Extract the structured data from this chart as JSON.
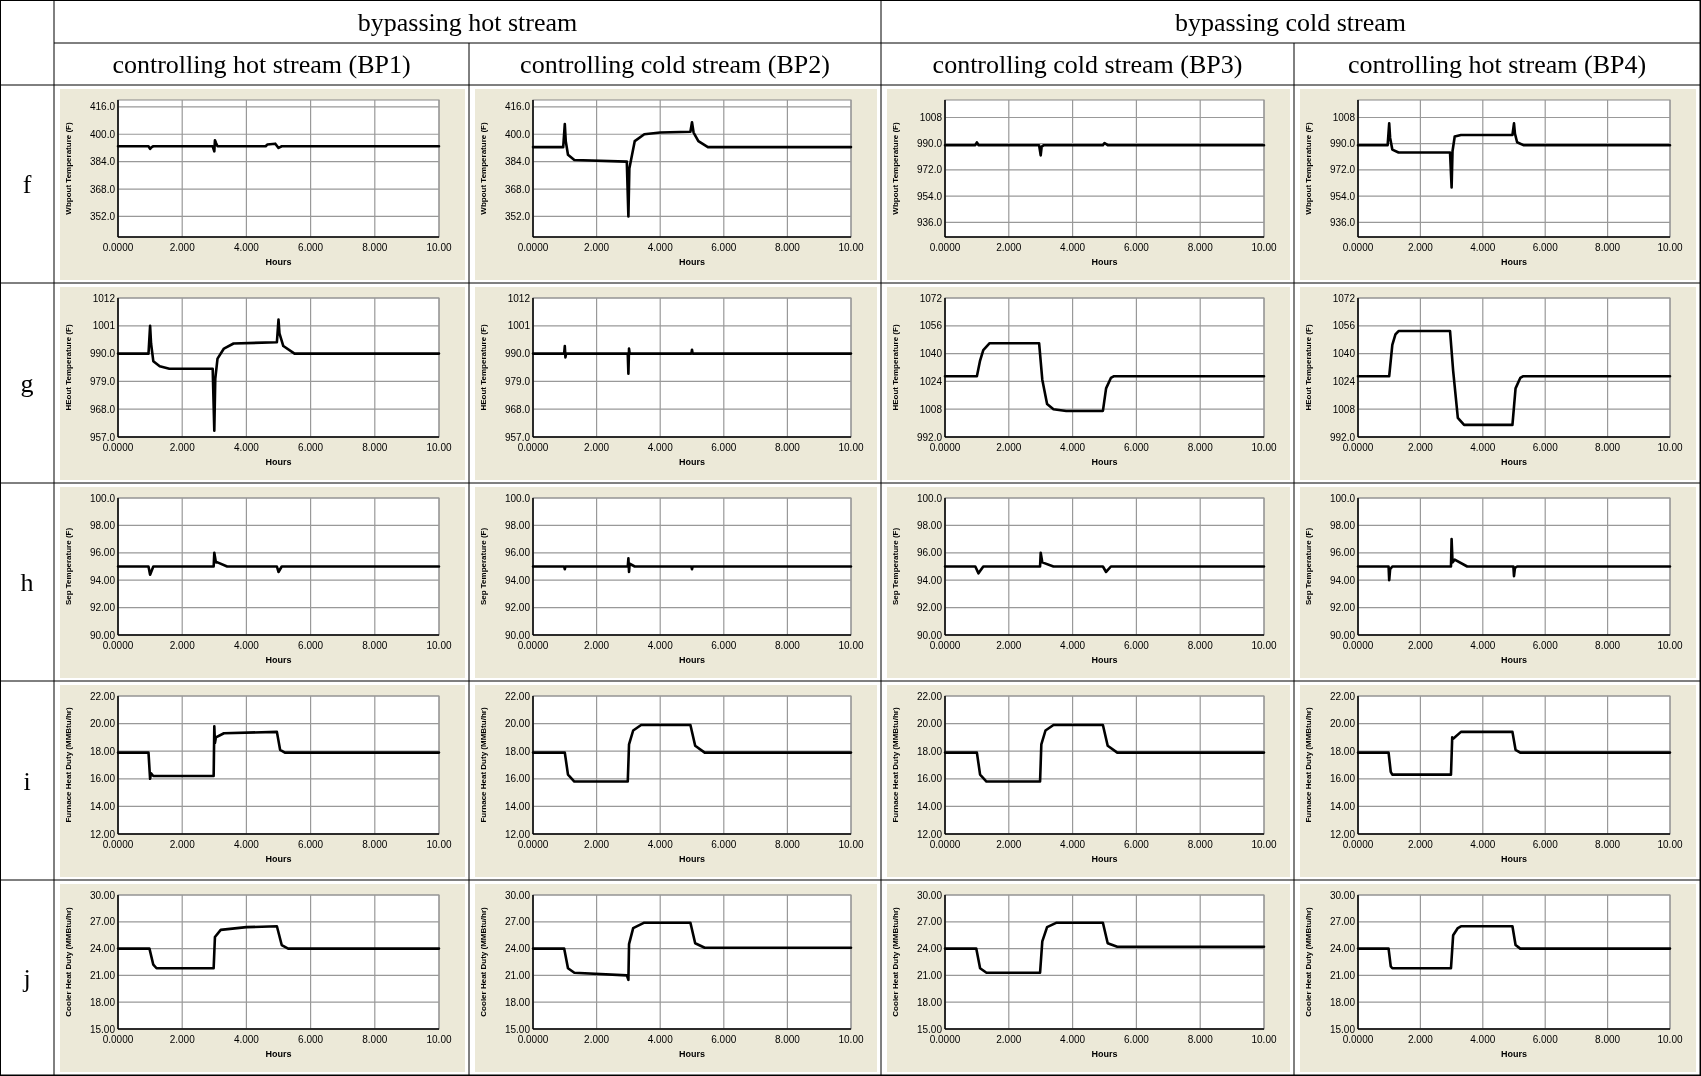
{
  "chart_data": [
    {
      "type": "other",
      "annotations": [
        "bypassing hot stream",
        "bypassing cold stream",
        "controlling hot stream (BP1)",
        "controlling cold stream (BP2)",
        "controlling cold stream (BP3)",
        "controlling hot stream (BP4)",
        "f",
        "g",
        "h",
        "i",
        "j"
      ]
    },
    {
      "type": "line",
      "xlabel": "Hours",
      "ylabel": "Wbpout Temperature (F)",
      "grid": true,
      "xlim": [
        0,
        10
      ],
      "xticks": [
        {
          "value": 0,
          "label": "0.0000"
        },
        {
          "value": 2,
          "label": "2.000"
        },
        {
          "value": 4,
          "label": "4.000"
        },
        {
          "value": 6,
          "label": "6.000"
        },
        {
          "value": 8,
          "label": "8.000"
        },
        {
          "value": 10,
          "label": "10.00"
        }
      ],
      "ylim": [
        340,
        420
      ],
      "yticks": [
        {
          "value": 352,
          "label": "352.0"
        },
        {
          "value": 368,
          "label": "368.0"
        },
        {
          "value": 384,
          "label": "384.0"
        },
        {
          "value": 400,
          "label": "400.0"
        },
        {
          "value": 416,
          "label": "416.0"
        }
      ],
      "x": [
        0,
        0.95,
        1.0,
        1.05,
        1.1,
        2.95,
        3.0,
        3.02,
        3.05,
        3.1,
        4.6,
        4.65,
        4.9,
        5.0,
        5.05,
        5.1,
        10
      ],
      "series": [
        {
          "color": "#000000",
          "values": [
            393,
            393,
            391.5,
            392.5,
            393,
            393,
            390,
            396.5,
            395,
            393,
            393,
            394,
            394.5,
            392,
            392.5,
            393,
            393
          ]
        }
      ]
    },
    {
      "type": "line",
      "xlabel": "Hours",
      "ylabel": "Wbpout Temperature (F)",
      "grid": true,
      "xlim": [
        0,
        10
      ],
      "xticks": [
        {
          "value": 0,
          "label": "0.0000"
        },
        {
          "value": 2,
          "label": "2.000"
        },
        {
          "value": 4,
          "label": "4.000"
        },
        {
          "value": 6,
          "label": "6.000"
        },
        {
          "value": 8,
          "label": "8.000"
        },
        {
          "value": 10,
          "label": "10.00"
        }
      ],
      "ylim": [
        340,
        420
      ],
      "yticks": [
        {
          "value": 352,
          "label": "352.0"
        },
        {
          "value": 368,
          "label": "368.0"
        },
        {
          "value": 384,
          "label": "384.0"
        },
        {
          "value": 400,
          "label": "400.0"
        },
        {
          "value": 416,
          "label": "416.0"
        }
      ],
      "x": [
        0,
        0.95,
        1.0,
        1.03,
        1.1,
        1.3,
        2.95,
        3.0,
        3.03,
        3.2,
        3.5,
        4.0,
        4.95,
        5.0,
        5.05,
        5.2,
        5.5,
        10
      ],
      "series": [
        {
          "color": "#000000",
          "values": [
            392.5,
            392.5,
            406,
            396,
            388,
            385,
            384,
            352,
            380,
            396,
            400,
            401,
            401.5,
            407,
            401,
            396,
            392.5,
            392.5
          ]
        }
      ]
    },
    {
      "type": "line",
      "xlabel": "Hours",
      "ylabel": "Wbpout Temperature (F)",
      "grid": true,
      "xlim": [
        0,
        10
      ],
      "xticks": [
        {
          "value": 0,
          "label": "0.0000"
        },
        {
          "value": 2,
          "label": "2.000"
        },
        {
          "value": 4,
          "label": "4.000"
        },
        {
          "value": 6,
          "label": "6.000"
        },
        {
          "value": 8,
          "label": "8.000"
        },
        {
          "value": 10,
          "label": "10.00"
        }
      ],
      "ylim": [
        926,
        1020
      ],
      "yticks": [
        {
          "value": 936,
          "label": "936.0"
        },
        {
          "value": 954,
          "label": "954.0"
        },
        {
          "value": 972,
          "label": "972.0"
        },
        {
          "value": 990,
          "label": "990.0"
        },
        1008
      ],
      "x": [
        0,
        0.95,
        1.0,
        1.05,
        2.95,
        3.0,
        3.03,
        3.1,
        4.95,
        5.0,
        5.1,
        10
      ],
      "series": [
        {
          "color": "#000000",
          "values": [
            989,
            989,
            991,
            989,
            989,
            982,
            988,
            989,
            989,
            990.5,
            989,
            989
          ]
        }
      ]
    },
    {
      "type": "line",
      "xlabel": "Hours",
      "ylabel": "Wbpout Temperature (F)",
      "grid": true,
      "xlim": [
        0,
        10
      ],
      "xticks": [
        {
          "value": 0,
          "label": "0.0000"
        },
        {
          "value": 2,
          "label": "2.000"
        },
        {
          "value": 4,
          "label": "4.000"
        },
        {
          "value": 6,
          "label": "6.000"
        },
        {
          "value": 8,
          "label": "8.000"
        },
        {
          "value": 10,
          "label": "10.00"
        }
      ],
      "ylim": [
        926,
        1020
      ],
      "yticks": [
        {
          "value": 936,
          "label": "936.0"
        },
        {
          "value": 954,
          "label": "954.0"
        },
        {
          "value": 972,
          "label": "972.0"
        },
        {
          "value": 990,
          "label": "990.0"
        },
        1008
      ],
      "x": [
        0,
        0.95,
        1.0,
        1.03,
        1.1,
        1.3,
        2.95,
        3.0,
        3.03,
        3.1,
        3.3,
        4.95,
        5.0,
        5.03,
        5.1,
        5.3,
        10
      ],
      "series": [
        {
          "color": "#000000",
          "values": [
            989,
            989,
            1004,
            994,
            986,
            984,
            984,
            960,
            985,
            995,
            996,
            996,
            1004,
            997,
            991,
            989,
            989
          ]
        }
      ]
    },
    {
      "type": "line",
      "xlabel": "Hours",
      "ylabel": "HEout Temperature (F)",
      "grid": true,
      "xlim": [
        0,
        10
      ],
      "xticks": [
        {
          "value": 0,
          "label": "0.0000"
        },
        {
          "value": 2,
          "label": "2.000"
        },
        {
          "value": 4,
          "label": "4.000"
        },
        {
          "value": 6,
          "label": "6.000"
        },
        {
          "value": 8,
          "label": "8.000"
        },
        {
          "value": 10,
          "label": "10.00"
        }
      ],
      "ylim": [
        957,
        1012
      ],
      "yticks": [
        {
          "value": 957,
          "label": "957.0"
        },
        {
          "value": 968,
          "label": "968.0"
        },
        {
          "value": 979,
          "label": "979.0"
        },
        {
          "value": 990,
          "label": "990.0"
        },
        1001,
        1012
      ],
      "x": [
        0,
        0.95,
        1.0,
        1.03,
        1.1,
        1.3,
        1.6,
        2.95,
        3.0,
        3.03,
        3.1,
        3.3,
        3.6,
        4.95,
        5.0,
        5.03,
        5.15,
        5.5,
        10
      ],
      "series": [
        {
          "color": "#000000",
          "values": [
            990,
            990,
            1001,
            994,
            987,
            985,
            984,
            984,
            959.5,
            980,
            988,
            992,
            994,
            994.5,
            1003.5,
            998,
            993,
            990,
            990
          ]
        }
      ]
    },
    {
      "type": "line",
      "xlabel": "Hours",
      "ylabel": "HEout Temperature (F)",
      "grid": true,
      "xlim": [
        0,
        10
      ],
      "xticks": [
        {
          "value": 0,
          "label": "0.0000"
        },
        {
          "value": 2,
          "label": "2.000"
        },
        {
          "value": 4,
          "label": "4.000"
        },
        {
          "value": 6,
          "label": "6.000"
        },
        {
          "value": 8,
          "label": "8.000"
        },
        {
          "value": 10,
          "label": "10.00"
        }
      ],
      "ylim": [
        957,
        1012
      ],
      "yticks": [
        {
          "value": 957,
          "label": "957.0"
        },
        {
          "value": 968,
          "label": "968.0"
        },
        {
          "value": 979,
          "label": "979.0"
        },
        {
          "value": 990,
          "label": "990.0"
        },
        1001,
        1012
      ],
      "x": [
        0,
        0.98,
        1.0,
        1.02,
        1.04,
        2.98,
        3.0,
        3.02,
        3.04,
        4.98,
        5.0,
        5.02,
        10
      ],
      "series": [
        {
          "color": "#000000",
          "values": [
            990,
            990,
            993,
            988.5,
            990,
            990,
            982,
            992,
            990,
            990,
            991.5,
            990,
            990
          ]
        }
      ]
    },
    {
      "type": "line",
      "xlabel": "Hours",
      "ylabel": "HEout Temperature (F)",
      "grid": true,
      "xlim": [
        0,
        10
      ],
      "xticks": [
        {
          "value": 0,
          "label": "0.0000"
        },
        {
          "value": 2,
          "label": "2.000"
        },
        {
          "value": 4,
          "label": "4.000"
        },
        {
          "value": 6,
          "label": "6.000"
        },
        {
          "value": 8,
          "label": "8.000"
        },
        {
          "value": 10,
          "label": "10.00"
        }
      ],
      "ylim": [
        992,
        1072
      ],
      "yticks": [
        {
          "value": 992,
          "label": "992.0"
        },
        1008,
        1024,
        1040,
        1056,
        1072
      ],
      "x": [
        0,
        1.0,
        1.1,
        1.2,
        1.4,
        2.95,
        3.05,
        3.2,
        3.4,
        3.8,
        4.95,
        5.05,
        5.2,
        5.3,
        10
      ],
      "series": [
        {
          "color": "#000000",
          "values": [
            1027,
            1027,
            1036,
            1042,
            1046,
            1046,
            1025,
            1011,
            1008,
            1007,
            1007,
            1020,
            1026,
            1027,
            1027
          ]
        }
      ]
    },
    {
      "type": "line",
      "xlabel": "Hours",
      "ylabel": "HEout Temperature (F)",
      "grid": true,
      "xlim": [
        0,
        10
      ],
      "xticks": [
        {
          "value": 0,
          "label": "0.0000"
        },
        {
          "value": 2,
          "label": "2.000"
        },
        {
          "value": 4,
          "label": "4.000"
        },
        {
          "value": 6,
          "label": "6.000"
        },
        {
          "value": 8,
          "label": "8.000"
        },
        {
          "value": 10,
          "label": "10.00"
        }
      ],
      "ylim": [
        992,
        1072
      ],
      "yticks": [
        {
          "value": 992,
          "label": "992.0"
        },
        1008,
        1024,
        1040,
        1056,
        1072
      ],
      "x": [
        0,
        1.0,
        1.1,
        1.2,
        1.3,
        2.95,
        3.05,
        3.2,
        3.4,
        4.95,
        5.05,
        5.2,
        5.3,
        10
      ],
      "series": [
        {
          "color": "#000000",
          "values": [
            1027,
            1027,
            1045,
            1051,
            1053,
            1053,
            1030,
            1003,
            999,
            999,
            1020,
            1026,
            1027,
            1027
          ]
        }
      ]
    },
    {
      "type": "line",
      "xlabel": "Hours",
      "ylabel": "Sep Temperature (F)",
      "grid": true,
      "xlim": [
        0,
        10
      ],
      "xticks": [
        {
          "value": 0,
          "label": "0.0000"
        },
        {
          "value": 2,
          "label": "2.000"
        },
        {
          "value": 4,
          "label": "4.000"
        },
        {
          "value": 6,
          "label": "6.000"
        },
        {
          "value": 8,
          "label": "8.000"
        },
        {
          "value": 10,
          "label": "10.00"
        }
      ],
      "ylim": [
        90,
        100
      ],
      "yticks": [
        {
          "value": 90,
          "label": "90.00"
        },
        {
          "value": 92,
          "label": "92.00"
        },
        {
          "value": 94,
          "label": "94.00"
        },
        {
          "value": 96,
          "label": "96.00"
        },
        {
          "value": 98,
          "label": "98.00"
        },
        {
          "value": 100,
          "label": "100.0"
        }
      ],
      "x": [
        0,
        0.95,
        1.0,
        1.1,
        2.98,
        3.0,
        3.05,
        3.1,
        3.4,
        4.95,
        5.0,
        5.1,
        10
      ],
      "series": [
        {
          "color": "#000000",
          "values": [
            95,
            95,
            94.4,
            95,
            95,
            96,
            95.3,
            95.3,
            95,
            95,
            94.6,
            95,
            95
          ]
        }
      ]
    },
    {
      "type": "line",
      "xlabel": "Hours",
      "ylabel": "Sep Temperature (F)",
      "grid": true,
      "xlim": [
        0,
        10
      ],
      "xticks": [
        {
          "value": 0,
          "label": "0.0000"
        },
        {
          "value": 2,
          "label": "2.000"
        },
        {
          "value": 4,
          "label": "4.000"
        },
        {
          "value": 6,
          "label": "6.000"
        },
        {
          "value": 8,
          "label": "8.000"
        },
        {
          "value": 10,
          "label": "10.00"
        }
      ],
      "ylim": [
        90,
        100
      ],
      "yticks": [
        {
          "value": 90,
          "label": "90.00"
        },
        {
          "value": 92,
          "label": "92.00"
        },
        {
          "value": 94,
          "label": "94.00"
        },
        {
          "value": 96,
          "label": "96.00"
        },
        {
          "value": 98,
          "label": "98.00"
        },
        {
          "value": 100,
          "label": "100.0"
        }
      ],
      "x": [
        0,
        0.98,
        1.0,
        1.02,
        2.98,
        3.0,
        3.02,
        3.04,
        3.2,
        4.98,
        5.0,
        5.02,
        10
      ],
      "series": [
        {
          "color": "#000000",
          "values": [
            95,
            95,
            94.8,
            95,
            95,
            95.6,
            94.6,
            95.2,
            95,
            95,
            94.8,
            95,
            95
          ]
        }
      ]
    },
    {
      "type": "line",
      "xlabel": "Hours",
      "ylabel": "Sep Temperature (F)",
      "grid": true,
      "xlim": [
        0,
        10
      ],
      "xticks": [
        {
          "value": 0,
          "label": "0.0000"
        },
        {
          "value": 2,
          "label": "2.000"
        },
        {
          "value": 4,
          "label": "4.000"
        },
        {
          "value": 6,
          "label": "6.000"
        },
        {
          "value": 8,
          "label": "8.000"
        },
        {
          "value": 10,
          "label": "10.00"
        }
      ],
      "ylim": [
        90,
        100
      ],
      "yticks": [
        {
          "value": 90,
          "label": "90.00"
        },
        {
          "value": 92,
          "label": "92.00"
        },
        {
          "value": 94,
          "label": "94.00"
        },
        {
          "value": 96,
          "label": "96.00"
        },
        {
          "value": 98,
          "label": "98.00"
        },
        {
          "value": 100,
          "label": "100.0"
        }
      ],
      "x": [
        0,
        0.95,
        1.05,
        1.2,
        2.98,
        3.0,
        3.05,
        3.4,
        4.95,
        5.05,
        5.2,
        10
      ],
      "series": [
        {
          "color": "#000000",
          "values": [
            95,
            95,
            94.5,
            95,
            95,
            96,
            95.3,
            95,
            95,
            94.6,
            95,
            95
          ]
        }
      ]
    },
    {
      "type": "line",
      "xlabel": "Hours",
      "ylabel": "Sep Temperature (F)",
      "grid": true,
      "xlim": [
        0,
        10
      ],
      "xticks": [
        {
          "value": 0,
          "label": "0.0000"
        },
        {
          "value": 2,
          "label": "2.000"
        },
        {
          "value": 4,
          "label": "4.000"
        },
        {
          "value": 6,
          "label": "6.000"
        },
        {
          "value": 8,
          "label": "8.000"
        },
        {
          "value": 10,
          "label": "10.00"
        }
      ],
      "ylim": [
        90,
        100
      ],
      "yticks": [
        {
          "value": 90,
          "label": "90.00"
        },
        {
          "value": 92,
          "label": "92.00"
        },
        {
          "value": 94,
          "label": "94.00"
        },
        {
          "value": 96,
          "label": "96.00"
        },
        {
          "value": 98,
          "label": "98.00"
        },
        {
          "value": 100,
          "label": "100.0"
        }
      ],
      "x": [
        0,
        0.98,
        1.0,
        1.03,
        1.1,
        2.98,
        3.0,
        3.03,
        3.1,
        3.5,
        4.98,
        5.0,
        5.03,
        5.1,
        10
      ],
      "series": [
        {
          "color": "#000000",
          "values": [
            95,
            95,
            94,
            94.8,
            95,
            95,
            97,
            95.3,
            95.5,
            95,
            95,
            94.3,
            94.9,
            95,
            95
          ]
        }
      ]
    },
    {
      "type": "line",
      "xlabel": "Hours",
      "ylabel": "Furnace Heat Duty (MMBtu/hr)",
      "grid": true,
      "xlim": [
        0,
        10
      ],
      "xticks": [
        {
          "value": 0,
          "label": "0.0000"
        },
        {
          "value": 2,
          "label": "2.000"
        },
        {
          "value": 4,
          "label": "4.000"
        },
        {
          "value": 6,
          "label": "6.000"
        },
        {
          "value": 8,
          "label": "8.000"
        },
        {
          "value": 10,
          "label": "10.00"
        }
      ],
      "ylim": [
        12,
        22
      ],
      "yticks": [
        {
          "value": 12,
          "label": "12.00"
        },
        {
          "value": 14,
          "label": "14.00"
        },
        {
          "value": 16,
          "label": "16.00"
        },
        {
          "value": 18,
          "label": "18.00"
        },
        {
          "value": 20,
          "label": "20.00"
        },
        {
          "value": 22,
          "label": "22.00"
        }
      ],
      "x": [
        0,
        0.95,
        1.0,
        1.03,
        1.1,
        2.98,
        3.0,
        3.02,
        3.05,
        3.3,
        4.95,
        5.05,
        5.2,
        10
      ],
      "series": [
        {
          "color": "#000000",
          "values": [
            17.9,
            17.9,
            16.0,
            16.4,
            16.2,
            16.2,
            19.8,
            18.6,
            19.0,
            19.3,
            19.4,
            18.1,
            17.9,
            17.9
          ]
        }
      ]
    },
    {
      "type": "line",
      "xlabel": "Hours",
      "ylabel": "Furnace Heat Duty (MMBtu/hr)",
      "grid": true,
      "xlim": [
        0,
        10
      ],
      "xticks": [
        {
          "value": 0,
          "label": "0.0000"
        },
        {
          "value": 2,
          "label": "2.000"
        },
        {
          "value": 4,
          "label": "4.000"
        },
        {
          "value": 6,
          "label": "6.000"
        },
        {
          "value": 8,
          "label": "8.000"
        },
        {
          "value": 10,
          "label": "10.00"
        }
      ],
      "ylim": [
        12,
        22
      ],
      "yticks": [
        {
          "value": 12,
          "label": "12.00"
        },
        {
          "value": 14,
          "label": "14.00"
        },
        {
          "value": 16,
          "label": "16.00"
        },
        {
          "value": 18,
          "label": "18.00"
        },
        {
          "value": 20,
          "label": "20.00"
        },
        {
          "value": 22,
          "label": "22.00"
        }
      ],
      "x": [
        0,
        1.0,
        1.1,
        1.3,
        2.98,
        3.02,
        3.15,
        3.4,
        4.95,
        5.1,
        5.4,
        10
      ],
      "series": [
        {
          "color": "#000000",
          "values": [
            17.9,
            17.9,
            16.3,
            15.8,
            15.8,
            18.5,
            19.5,
            19.9,
            19.9,
            18.4,
            17.9,
            17.9
          ]
        }
      ]
    },
    {
      "type": "line",
      "xlabel": "Hours",
      "ylabel": "Furnace Heat Duty (MMBtu/hr)",
      "grid": true,
      "xlim": [
        0,
        10
      ],
      "xticks": [
        {
          "value": 0,
          "label": "0.0000"
        },
        {
          "value": 2,
          "label": "2.000"
        },
        {
          "value": 4,
          "label": "4.000"
        },
        {
          "value": 6,
          "label": "6.000"
        },
        {
          "value": 8,
          "label": "8.000"
        },
        {
          "value": 10,
          "label": "10.00"
        }
      ],
      "ylim": [
        12,
        22
      ],
      "yticks": [
        {
          "value": 12,
          "label": "12.00"
        },
        {
          "value": 14,
          "label": "14.00"
        },
        {
          "value": 16,
          "label": "16.00"
        },
        {
          "value": 18,
          "label": "18.00"
        },
        {
          "value": 20,
          "label": "20.00"
        },
        {
          "value": 22,
          "label": "22.00"
        }
      ],
      "x": [
        0,
        1.0,
        1.1,
        1.3,
        2.98,
        3.02,
        3.15,
        3.4,
        4.95,
        5.1,
        5.4,
        10
      ],
      "series": [
        {
          "color": "#000000",
          "values": [
            17.9,
            17.9,
            16.3,
            15.8,
            15.8,
            18.5,
            19.5,
            19.9,
            19.9,
            18.4,
            17.9,
            17.9
          ]
        }
      ]
    },
    {
      "type": "line",
      "xlabel": "Hours",
      "ylabel": "Furnace Heat Duty (MMBtu/hr)",
      "grid": true,
      "xlim": [
        0,
        10
      ],
      "xticks": [
        {
          "value": 0,
          "label": "0.0000"
        },
        {
          "value": 2,
          "label": "2.000"
        },
        {
          "value": 4,
          "label": "4.000"
        },
        {
          "value": 6,
          "label": "6.000"
        },
        {
          "value": 8,
          "label": "8.000"
        },
        {
          "value": 10,
          "label": "10.00"
        }
      ],
      "ylim": [
        12,
        22
      ],
      "yticks": [
        {
          "value": 12,
          "label": "12.00"
        },
        {
          "value": 14,
          "label": "14.00"
        },
        {
          "value": 16,
          "label": "16.00"
        },
        {
          "value": 18,
          "label": "18.00"
        },
        {
          "value": 20,
          "label": "20.00"
        },
        {
          "value": 22,
          "label": "22.00"
        }
      ],
      "x": [
        0,
        0.98,
        1.05,
        1.1,
        2.98,
        3.02,
        3.05,
        3.3,
        4.95,
        5.05,
        5.2,
        10
      ],
      "series": [
        {
          "color": "#000000",
          "values": [
            17.9,
            17.9,
            16.5,
            16.3,
            16.3,
            19.0,
            18.9,
            19.4,
            19.4,
            18.1,
            17.9,
            17.9
          ]
        }
      ]
    },
    {
      "type": "line",
      "xlabel": "Hours",
      "ylabel": "Cooler Heat Duty (MMBtu/hr)",
      "grid": true,
      "xlim": [
        0,
        10
      ],
      "xticks": [
        {
          "value": 0,
          "label": "0.0000"
        },
        {
          "value": 2,
          "label": "2.000"
        },
        {
          "value": 4,
          "label": "4.000"
        },
        {
          "value": 6,
          "label": "6.000"
        },
        {
          "value": 8,
          "label": "8.000"
        },
        {
          "value": 10,
          "label": "10.00"
        }
      ],
      "ylim": [
        15,
        30
      ],
      "yticks": [
        {
          "value": 15,
          "label": "15.00"
        },
        {
          "value": 18,
          "label": "18.00"
        },
        {
          "value": 21,
          "label": "21.00"
        },
        {
          "value": 24,
          "label": "24.00"
        },
        {
          "value": 27,
          "label": "27.00"
        },
        {
          "value": 30,
          "label": "30.00"
        }
      ],
      "x": [
        0,
        0.98,
        1.1,
        1.2,
        2.98,
        3.02,
        3.2,
        4.0,
        4.95,
        5.1,
        5.3,
        10
      ],
      "series": [
        {
          "color": "#000000",
          "values": [
            24,
            24,
            22.2,
            21.8,
            21.8,
            25.3,
            26.1,
            26.4,
            26.5,
            24.4,
            24,
            24
          ]
        }
      ]
    },
    {
      "type": "line",
      "xlabel": "Hours",
      "ylabel": "Cooler Heat Duty (MMBtu/hr)",
      "grid": true,
      "xlim": [
        0,
        10
      ],
      "xticks": [
        {
          "value": 0,
          "label": "0.0000"
        },
        {
          "value": 2,
          "label": "2.000"
        },
        {
          "value": 4,
          "label": "4.000"
        },
        {
          "value": 6,
          "label": "6.000"
        },
        {
          "value": 8,
          "label": "8.000"
        },
        {
          "value": 10,
          "label": "10.00"
        }
      ],
      "ylim": [
        15,
        30
      ],
      "yticks": [
        {
          "value": 15,
          "label": "15.00"
        },
        {
          "value": 18,
          "label": "18.00"
        },
        {
          "value": 21,
          "label": "21.00"
        },
        {
          "value": 24,
          "label": "24.00"
        },
        {
          "value": 27,
          "label": "27.00"
        },
        {
          "value": 30,
          "label": "30.00"
        }
      ],
      "x": [
        0,
        0.98,
        1.1,
        1.3,
        2.95,
        3.0,
        3.02,
        3.15,
        3.5,
        4.95,
        5.1,
        5.4,
        10
      ],
      "series": [
        {
          "color": "#000000",
          "values": [
            24,
            24,
            21.8,
            21.3,
            21.0,
            20.5,
            24.5,
            26.3,
            26.9,
            26.9,
            24.6,
            24.1,
            24.1
          ]
        }
      ]
    },
    {
      "type": "line",
      "xlabel": "Hours",
      "ylabel": "Cooler Heat Duty (MMBtu/hr)",
      "grid": true,
      "xlim": [
        0,
        10
      ],
      "xticks": [
        {
          "value": 0,
          "label": "0.0000"
        },
        {
          "value": 2,
          "label": "2.000"
        },
        {
          "value": 4,
          "label": "4.000"
        },
        {
          "value": 6,
          "label": "6.000"
        },
        {
          "value": 8,
          "label": "8.000"
        },
        {
          "value": 10,
          "label": "10.00"
        }
      ],
      "ylim": [
        15,
        30
      ],
      "yticks": [
        {
          "value": 15,
          "label": "15.00"
        },
        {
          "value": 18,
          "label": "18.00"
        },
        {
          "value": 21,
          "label": "21.00"
        },
        {
          "value": 24,
          "label": "24.00"
        },
        {
          "value": 27,
          "label": "27.00"
        },
        {
          "value": 30,
          "label": "30.00"
        }
      ],
      "x": [
        0,
        0.98,
        1.1,
        1.3,
        2.98,
        3.05,
        3.2,
        3.5,
        4.95,
        5.1,
        5.4,
        10
      ],
      "series": [
        {
          "color": "#000000",
          "values": [
            24,
            24,
            21.8,
            21.3,
            21.3,
            24.8,
            26.4,
            26.9,
            26.9,
            24.6,
            24.2,
            24.2
          ]
        }
      ]
    },
    {
      "type": "line",
      "xlabel": "Hours",
      "ylabel": "Cooler Heat Duty (MMBtu/hr)",
      "grid": true,
      "xlim": [
        0,
        10
      ],
      "xticks": [
        {
          "value": 0,
          "label": "0.0000"
        },
        {
          "value": 2,
          "label": "2.000"
        },
        {
          "value": 4,
          "label": "4.000"
        },
        {
          "value": 6,
          "label": "6.000"
        },
        {
          "value": 8,
          "label": "8.000"
        },
        {
          "value": 10,
          "label": "10.00"
        }
      ],
      "ylim": [
        15,
        30
      ],
      "yticks": [
        {
          "value": 15,
          "label": "15.00"
        },
        {
          "value": 18,
          "label": "18.00"
        },
        {
          "value": 21,
          "label": "21.00"
        },
        {
          "value": 24,
          "label": "24.00"
        },
        {
          "value": 27,
          "label": "27.00"
        },
        {
          "value": 30,
          "label": "30.00"
        }
      ],
      "x": [
        0,
        0.98,
        1.05,
        1.1,
        2.98,
        3.05,
        3.2,
        3.3,
        4.95,
        5.05,
        5.2,
        10
      ],
      "series": [
        {
          "color": "#000000",
          "values": [
            24,
            24,
            22,
            21.8,
            21.8,
            25.5,
            26.3,
            26.5,
            26.5,
            24.4,
            24,
            24
          ]
        }
      ]
    }
  ]
}
